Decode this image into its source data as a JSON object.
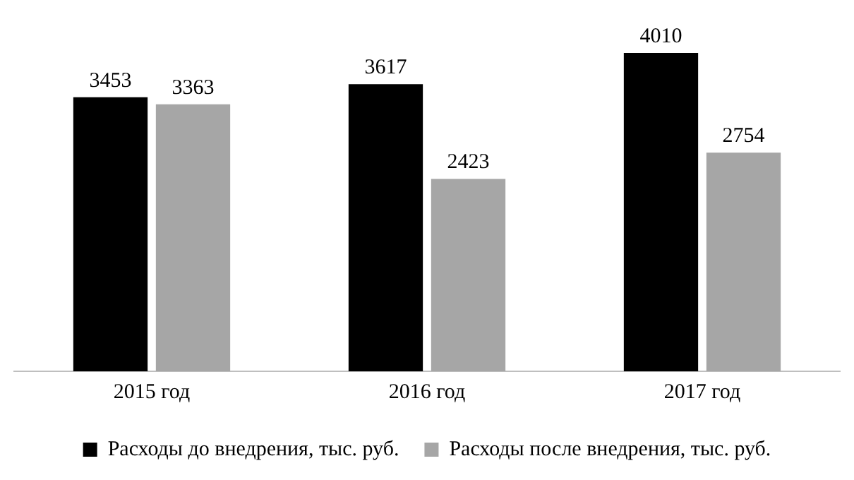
{
  "chart_data": {
    "type": "bar",
    "categories": [
      "2015 год",
      "2016 год",
      "2017 год"
    ],
    "series": [
      {
        "name": "Расходы до внедрения, тыс. руб.",
        "color": "#000000",
        "values": [
          3453,
          3617,
          4010
        ]
      },
      {
        "name": "Расходы после внедрения, тыс. руб.",
        "color": "#a6a6a6",
        "values": [
          3363,
          2423,
          2754
        ]
      }
    ],
    "data_labels": true,
    "legend": "bottom",
    "grid": false
  }
}
